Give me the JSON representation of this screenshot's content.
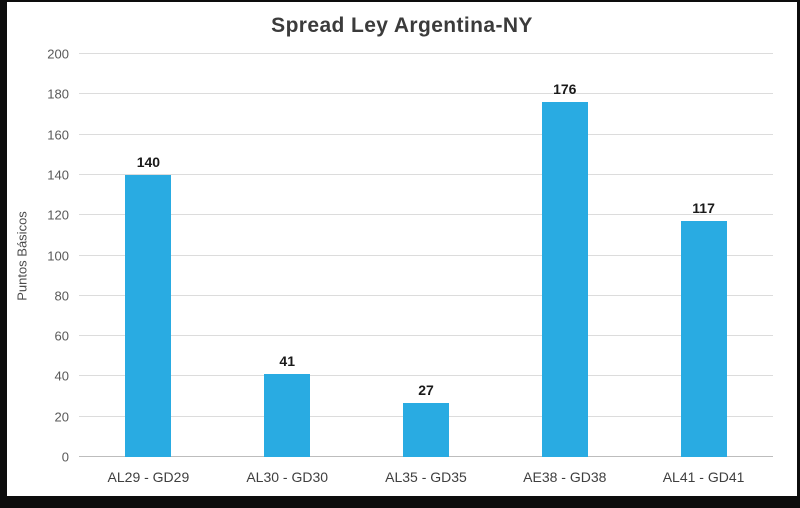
{
  "frame": {
    "border_color": "#0d0d0d",
    "background": "#ffffff"
  },
  "chart_data": {
    "type": "bar",
    "title": "Spread Ley Argentina-NY",
    "xlabel": "",
    "ylabel": "Puntos Básicos",
    "categories": [
      "AL29 - GD29",
      "AL30 - GD30",
      "AL35 - GD35",
      "AE38 - GD38",
      "AL41 - GD41"
    ],
    "values": [
      140,
      41,
      27,
      176,
      117
    ],
    "value_labels": [
      "140",
      "41",
      "27",
      "176",
      "117"
    ],
    "ylim": [
      0,
      200
    ],
    "yticks": [
      0,
      20,
      40,
      60,
      80,
      100,
      120,
      140,
      160,
      180,
      200
    ],
    "grid": true,
    "legend": "none",
    "bar_color": "#29abe2",
    "gridline_color": "#dcdcdc"
  }
}
